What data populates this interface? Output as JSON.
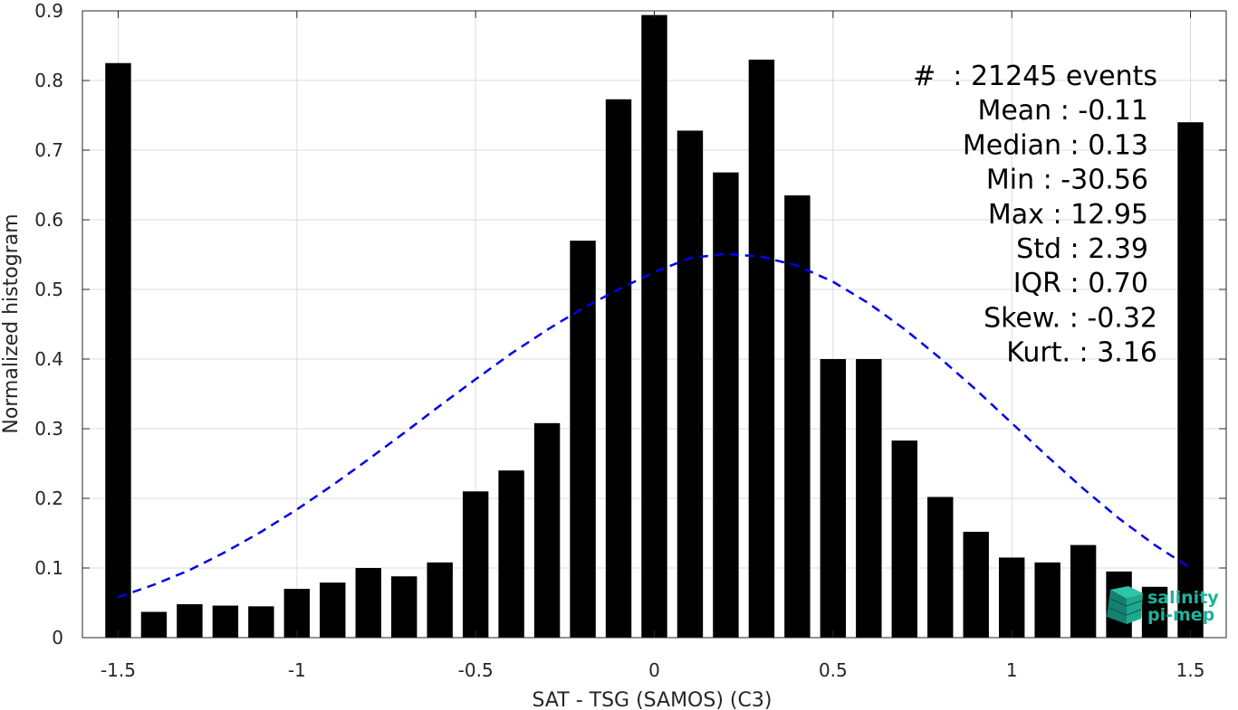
{
  "chart_data": {
    "type": "bar",
    "xlabel": "SAT - TSG (SAMOS) (C3)",
    "ylabel": "Normalized histogram",
    "xlim": [
      -1.6,
      1.6
    ],
    "ylim": [
      0,
      0.9
    ],
    "x_ticks": [
      -1.5,
      -1,
      -0.5,
      0,
      0.5,
      1,
      1.5
    ],
    "x_tick_labels": [
      "-1.5",
      "-1",
      "-0.5",
      "0",
      "0.5",
      "1",
      "1.5"
    ],
    "y_ticks": [
      0,
      0.1,
      0.2,
      0.3,
      0.4,
      0.5,
      0.6,
      0.7,
      0.8,
      0.9
    ],
    "y_tick_labels": [
      "0",
      "0.1",
      "0.2",
      "0.3",
      "0.4",
      "0.5",
      "0.6",
      "0.7",
      "0.8",
      "0.9"
    ],
    "grid": true,
    "bar_color": "#000000",
    "bars": {
      "x": [
        -1.5,
        -1.4,
        -1.3,
        -1.2,
        -1.1,
        -1.0,
        -0.9,
        -0.8,
        -0.7,
        -0.6,
        -0.5,
        -0.4,
        -0.3,
        -0.2,
        -0.1,
        0.0,
        0.1,
        0.2,
        0.3,
        0.4,
        0.5,
        0.6,
        0.7,
        0.8,
        0.9,
        1.0,
        1.1,
        1.2,
        1.3,
        1.4,
        1.5
      ],
      "values": [
        0.825,
        0.037,
        0.048,
        0.046,
        0.045,
        0.07,
        0.079,
        0.1,
        0.088,
        0.108,
        0.21,
        0.24,
        0.308,
        0.57,
        0.773,
        0.894,
        0.728,
        0.668,
        0.83,
        0.635,
        0.4,
        0.4,
        0.283,
        0.202,
        0.152,
        0.115,
        0.108,
        0.133,
        0.095,
        0.073,
        0.74
      ]
    },
    "fit_curve": {
      "style": "dashed",
      "color": "#0000ee",
      "x": [
        -1.5,
        -1.4,
        -1.3,
        -1.2,
        -1.1,
        -1.0,
        -0.9,
        -0.8,
        -0.7,
        -0.6,
        -0.5,
        -0.4,
        -0.3,
        -0.2,
        -0.1,
        0.0,
        0.1,
        0.2,
        0.3,
        0.4,
        0.5,
        0.6,
        0.7,
        0.8,
        0.9,
        1.0,
        1.1,
        1.2,
        1.3,
        1.4,
        1.5
      ],
      "y": [
        0.058,
        0.076,
        0.097,
        0.123,
        0.152,
        0.184,
        0.219,
        0.256,
        0.294,
        0.333,
        0.371,
        0.408,
        0.442,
        0.473,
        0.5,
        0.525,
        0.545,
        0.551,
        0.547,
        0.534,
        0.511,
        0.48,
        0.443,
        0.401,
        0.356,
        0.308,
        0.26,
        0.214,
        0.171,
        0.133,
        0.1
      ]
    },
    "stats": [
      "#  : 21245 events",
      "Mean : -0.11",
      "Median : 0.13",
      "Min : -30.56",
      "Max : 12.95",
      "Std : 2.39",
      "IQR : 0.70",
      "Skew. : -0.32",
      "Kurt. : 3.16"
    ]
  },
  "logo": {
    "line1": "salinity",
    "line2": "pi-mep",
    "color": "#1fb39a"
  }
}
